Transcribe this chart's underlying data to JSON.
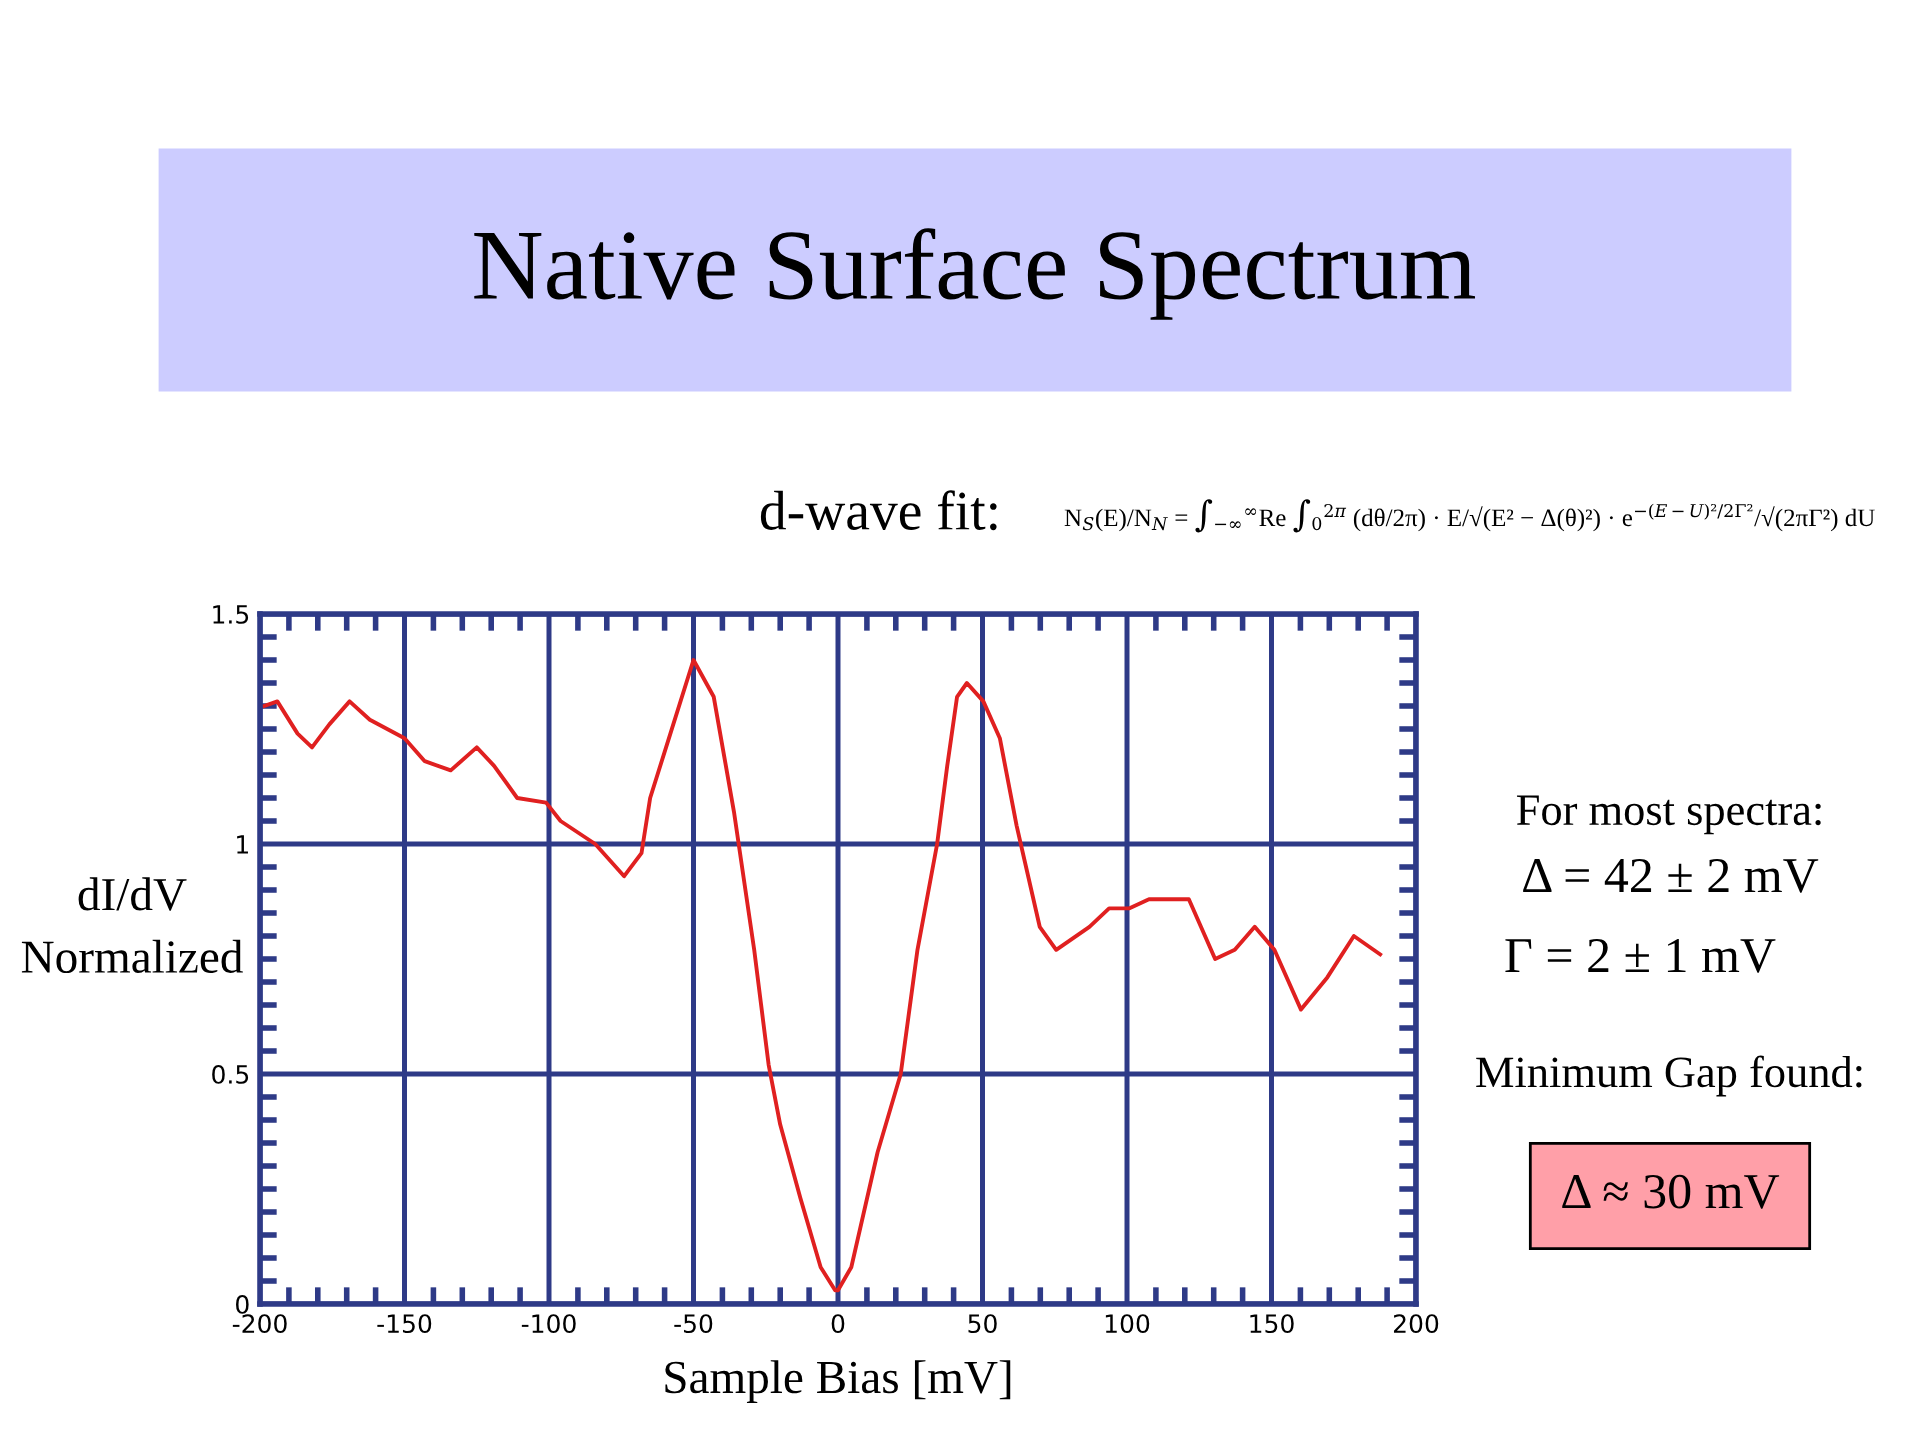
{
  "chart_data": {
    "type": "line",
    "title": "Native Surface Spectrum",
    "xlabel": "Sample Bias [mV]",
    "ylabel": "dI/dV\nNormalized",
    "annotations": [
      "d-wave fit:",
      "N$_{S}$(E)/N$_{N}$ = ∫$_{−∞}$$^{∞}$Re ∫$_{0}$$^{2π}$ (dθ/2π) · E/√(E² − Δ(θ)²) · e$^{−(E−U)²/2Γ²}$/√(2πΓ²) dU",
      "For most spectra:",
      "Δ = 42 ± 2 mV",
      "Γ = 2 ± 1 mV",
      "Minimum Gap found:",
      "Δ ≈ 30 mV"
    ],
    "series": [
      {
        "color": "#e02020",
        "x": [
          -198.6,
          -194,
          -187,
          -182,
          -176,
          -169,
          -162,
          -150,
          -143,
          -134,
          -125,
          -119,
          -111,
          -101,
          -96,
          -84,
          -74,
          -68,
          -65,
          -58,
          -50,
          -43,
          -36,
          -29,
          -24,
          -20,
          -13,
          -6,
          -1,
          0,
          4.6,
          13.7,
          21.7,
          27.5,
          34.3,
          37.8,
          41.2,
          44.6,
          50.3,
          56,
          61.8,
          69.8,
          75.5,
          87,
          93.8,
          100.7,
          107.6,
          121.4,
          130.5,
          137.3,
          144.2,
          151,
          160.2,
          169.3,
          178.5,
          187.6
        ],
        "values": [
          1.3,
          1.31,
          1.24,
          1.21,
          1.26,
          1.31,
          1.27,
          1.23,
          1.18,
          1.16,
          1.21,
          1.17,
          1.1,
          1.09,
          1.05,
          1.0,
          0.93,
          0.98,
          1.1,
          1.24,
          1.4,
          1.32,
          1.07,
          0.77,
          0.52,
          0.39,
          0.23,
          0.08,
          0.03,
          0.03,
          0.08,
          0.33,
          0.5,
          0.77,
          1.0,
          1.17,
          1.32,
          1.35,
          1.31,
          1.23,
          1.04,
          0.82,
          0.77,
          0.82,
          0.86,
          0.86,
          0.88,
          0.88,
          0.75,
          0.77,
          0.82,
          0.77,
          0.64,
          0.71,
          0.8,
          0.76
        ]
      }
    ],
    "xlim": [
      -200,
      200
    ],
    "ylim": [
      0,
      1.5
    ],
    "xticks": [
      -200,
      -150,
      -100,
      -50,
      0,
      50,
      100,
      150,
      200,
      {
        "value": -190,
        "label": null
      },
      {
        "value": -180,
        "label": null
      },
      {
        "value": -170,
        "label": null
      },
      {
        "value": -160,
        "label": null
      },
      {
        "value": -140,
        "label": null
      },
      {
        "value": -130,
        "label": null
      },
      {
        "value": -120,
        "label": null
      },
      {
        "value": -110,
        "label": null
      },
      {
        "value": -90,
        "label": null
      },
      {
        "value": -80,
        "label": null
      },
      {
        "value": -70,
        "label": null
      },
      {
        "value": -60,
        "label": null
      },
      {
        "value": -40,
        "label": null
      },
      {
        "value": -30,
        "label": null
      },
      {
        "value": -20,
        "label": null
      },
      {
        "value": -10,
        "label": null
      },
      {
        "value": 10,
        "label": null
      },
      {
        "value": 20,
        "label": null
      },
      {
        "value": 30,
        "label": null
      },
      {
        "value": 40,
        "label": null
      },
      {
        "value": 60,
        "label": null
      },
      {
        "value": 70,
        "label": null
      },
      {
        "value": 80,
        "label": null
      },
      {
        "value": 90,
        "label": null
      },
      {
        "value": 110,
        "label": null
      },
      {
        "value": 120,
        "label": null
      },
      {
        "value": 130,
        "label": null
      },
      {
        "value": 140,
        "label": null
      },
      {
        "value": 160,
        "label": null
      },
      {
        "value": 170,
        "label": null
      },
      {
        "value": 180,
        "label": null
      },
      {
        "value": 190,
        "label": null
      }
    ],
    "yticks": [
      0,
      0.5,
      1,
      1.5,
      {
        "value": 0.05,
        "label": null
      },
      {
        "value": 0.1,
        "label": null
      },
      {
        "value": 0.15,
        "label": null
      },
      {
        "value": 0.2,
        "label": null
      },
      {
        "value": 0.25,
        "label": null
      },
      {
        "value": 0.3,
        "label": null
      },
      {
        "value": 0.35,
        "label": null
      },
      {
        "value": 0.4,
        "label": null
      },
      {
        "value": 0.45,
        "label": null
      },
      {
        "value": 0.55,
        "label": null
      },
      {
        "value": 0.6,
        "label": null
      },
      {
        "value": 0.65,
        "label": null
      },
      {
        "value": 0.7,
        "label": null
      },
      {
        "value": 0.75,
        "label": null
      },
      {
        "value": 0.8,
        "label": null
      },
      {
        "value": 0.85,
        "label": null
      },
      {
        "value": 0.9,
        "label": null
      },
      {
        "value": 0.95,
        "label": null
      },
      {
        "value": 1.05,
        "label": null
      },
      {
        "value": 1.1,
        "label": null
      },
      {
        "value": 1.15,
        "label": null
      },
      {
        "value": 1.2,
        "label": null
      },
      {
        "value": 1.25,
        "label": null
      },
      {
        "value": 1.3,
        "label": null
      },
      {
        "value": 1.35,
        "label": null
      },
      {
        "value": 1.4,
        "label": null
      },
      {
        "value": 1.45,
        "label": null
      }
    ],
    "grid": true
  }
}
